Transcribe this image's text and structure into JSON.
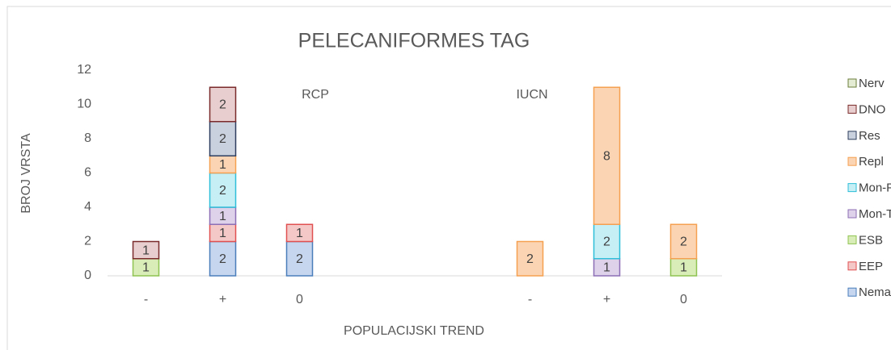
{
  "chart_data": {
    "type": "stacked_bar",
    "title": "PELECANIFORMES TAG",
    "y_label": "BROJ VRSTA",
    "x_label": "POPULACIJSKI TREND",
    "annotations": [
      "RCP",
      "IUCN"
    ],
    "categories": [
      "-",
      "+",
      "0",
      null,
      null,
      "-",
      "+",
      "0"
    ],
    "ylim": [
      0,
      12
    ],
    "yticks": [
      0,
      2,
      4,
      6,
      8,
      10,
      12
    ],
    "grid": false,
    "legend": "right",
    "series": [
      {
        "name": "Nema statusa",
        "color": "#c6d6ef",
        "edgecolor": "#4a7ebb",
        "values": [
          null,
          2,
          2,
          null,
          null,
          null,
          null,
          null
        ]
      },
      {
        "name": "EEP      / CR",
        "color": "#f5c8c8",
        "edgecolor": "#e05050",
        "values": [
          null,
          1,
          1,
          null,
          null,
          null,
          null,
          null
        ]
      },
      {
        "name": "ESB      / EN",
        "color": "#d8edb8",
        "edgecolor": "#8fc351",
        "values": [
          1,
          null,
          null,
          null,
          null,
          null,
          null,
          1
        ]
      },
      {
        "name": "Mon-T   / VU",
        "color": "#ded2eb",
        "edgecolor": "#8c6fb5",
        "values": [
          null,
          1,
          null,
          null,
          null,
          null,
          1,
          null
        ]
      },
      {
        "name": "Mon-P   / NT",
        "color": "#c6eef5",
        "edgecolor": "#2fbfd8",
        "values": [
          null,
          2,
          null,
          null,
          null,
          null,
          2,
          null
        ]
      },
      {
        "name": "Repl      / LC",
        "color": "#fbd5b3",
        "edgecolor": "#f5a050",
        "values": [
          null,
          1,
          null,
          null,
          null,
          2,
          8,
          2
        ]
      },
      {
        "name": "Res",
        "color": "#c9d1de",
        "edgecolor": "#2e3e5e",
        "values": [
          null,
          2,
          null,
          null,
          null,
          null,
          null,
          null
        ]
      },
      {
        "name": "DNO",
        "color": "#e8cece",
        "edgecolor": "#7a2a2a",
        "values": [
          1,
          2,
          null,
          null,
          null,
          null,
          null,
          null
        ]
      },
      {
        "name": "Nerv",
        "color": "#e4edd3",
        "edgecolor": "#6b7d3a",
        "values": [
          null,
          null,
          null,
          null,
          null,
          null,
          null,
          null
        ]
      }
    ]
  }
}
